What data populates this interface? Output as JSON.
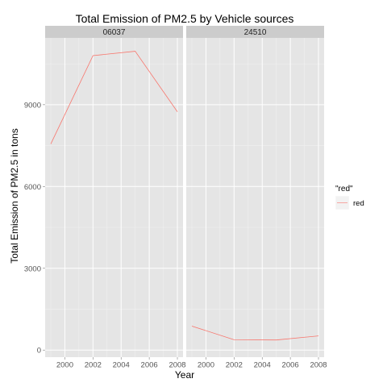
{
  "chart_data": {
    "type": "line",
    "title": "Total Emission of PM2.5 by Vehicle sources",
    "xlabel": "Year",
    "ylabel": "Total Emission of PM2.5 in tons",
    "xlim": [
      1998.6,
      2008.4
    ],
    "ylim": [
      -260,
      11450
    ],
    "x_ticks": [
      2000,
      2002,
      2004,
      2006,
      2008
    ],
    "x_tick_labels": [
      "2000",
      "2002",
      "2004",
      "2006",
      "2008"
    ],
    "y_ticks": [
      0,
      3000,
      6000,
      9000
    ],
    "y_tick_labels": [
      "0",
      "3000",
      "6000",
      "9000"
    ],
    "grid": true,
    "panels": [
      {
        "label": "06037",
        "x": [
          1999,
          2002,
          2005,
          2008
        ],
        "y": [
          7560,
          10800,
          10960,
          8740
        ]
      },
      {
        "label": "24510",
        "x": [
          1999,
          2002,
          2005,
          2008
        ],
        "y": [
          880,
          380,
          370,
          520
        ]
      }
    ],
    "series": [
      {
        "name": "red",
        "color": "#F8766D"
      }
    ],
    "legend": {
      "title": "\"red\"",
      "position": "right"
    }
  }
}
